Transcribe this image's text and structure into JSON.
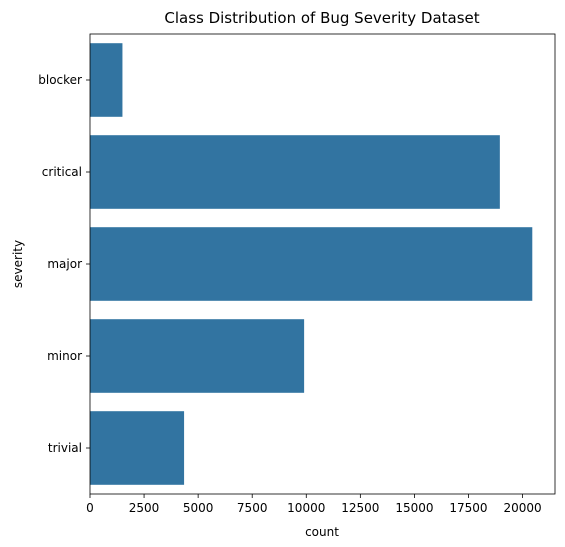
{
  "chart_data": {
    "type": "bar",
    "orientation": "horizontal",
    "title": "Class Distribution of Bug Severity Dataset",
    "xlabel": "count",
    "ylabel": "severity",
    "categories": [
      "blocker",
      "critical",
      "major",
      "minor",
      "trivial"
    ],
    "values": [
      1500,
      18950,
      20450,
      9900,
      4350
    ],
    "xlim": [
      0,
      21500
    ],
    "xticks": [
      0,
      2500,
      5000,
      7500,
      10000,
      12500,
      15000,
      17500,
      20000
    ],
    "grid": false,
    "legend": "none",
    "bar_color": "#3274a1"
  }
}
